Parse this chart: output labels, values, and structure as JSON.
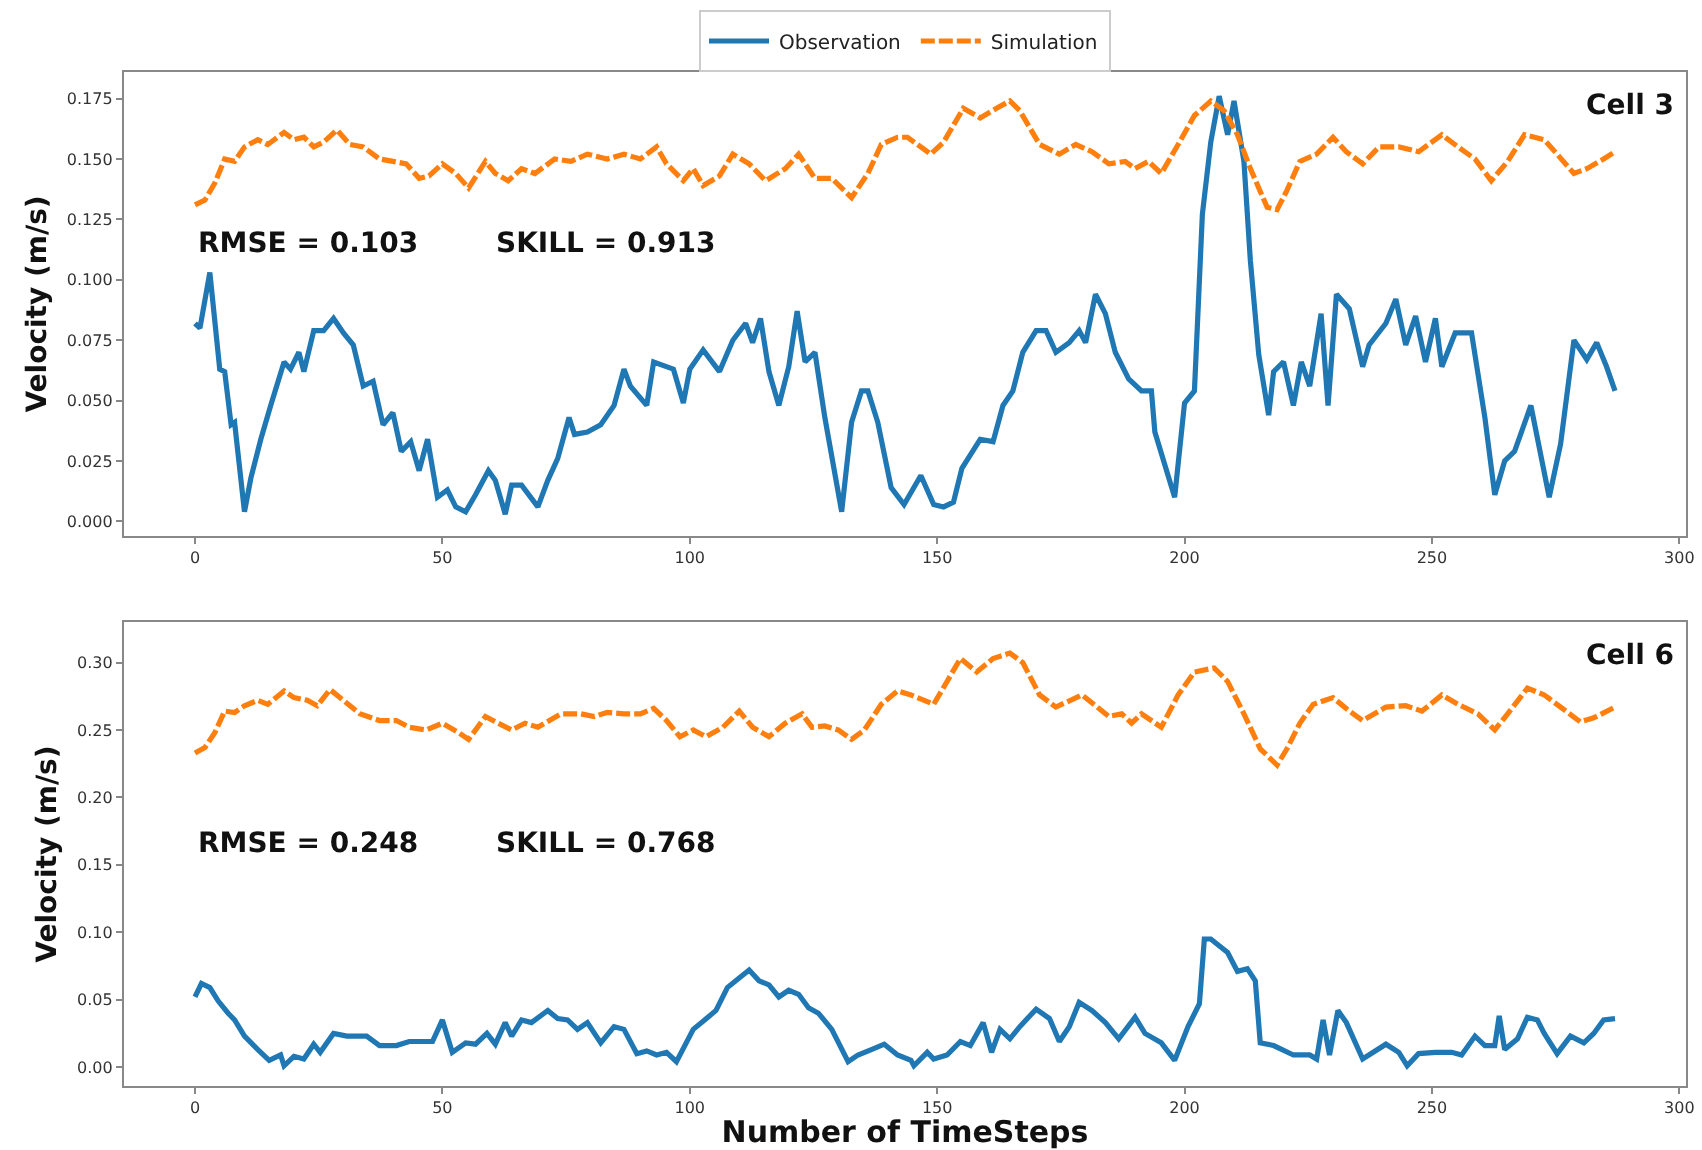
{
  "chart_data": [
    {
      "type": "line",
      "ylabel": "Velocity (m/s)",
      "annotations": [
        "Cell 3",
        "RMSE = 0.103",
        "SKILL = 0.913"
      ],
      "legend": "top",
      "xlim": [
        -14.35,
        301.35
      ],
      "xticks": [
        0,
        50,
        100,
        150,
        200,
        250,
        300
      ],
      "ylim": [
        -0.006,
        0.186
      ],
      "yticks": [
        {
          "value": 0,
          "label": "0.000"
        },
        0.025,
        {
          "value": 0.05,
          "label": "0.050"
        },
        0.075,
        {
          "value": 0.1,
          "label": "0.100"
        },
        0.125,
        {
          "value": 0.15,
          "label": "0.150"
        },
        0.175
      ],
      "series": [
        {
          "name": "Observation",
          "color": "#1f77b4",
          "line_style": "solid",
          "x": [
            0,
            1,
            3,
            5,
            6,
            7.3,
            8,
            10,
            11.3,
            13.3,
            15.3,
            18,
            19.3,
            21,
            22,
            24,
            26,
            28,
            30,
            32,
            34,
            36,
            38,
            40,
            41.7,
            43.6,
            45.3,
            47,
            49,
            51,
            52.7,
            54.7,
            56.7,
            59.3,
            60.7,
            62.7,
            64,
            66,
            69.3,
            71.3,
            73.3,
            75.6,
            76.7,
            79.3,
            82,
            84.7,
            86.7,
            88,
            91.3,
            92.7,
            96.7,
            98.7,
            100,
            102.7,
            106,
            108.7,
            111.3,
            112.7,
            114.3,
            116,
            118,
            120,
            121.7,
            123.3,
            125.3,
            127.3,
            130.7,
            132.7,
            134.7,
            136,
            138,
            140.7,
            143.3,
            146.7,
            149.3,
            151.3,
            153.3,
            155,
            158.7,
            161.3,
            163.3,
            165.3,
            167.3,
            170,
            172,
            174,
            176.7,
            178.7,
            180,
            182,
            184,
            186,
            188.7,
            191.3,
            193.3,
            194,
            198,
            200,
            202,
            203.6,
            205.3,
            207,
            208.7,
            210,
            212,
            213.3,
            215,
            217,
            218,
            220,
            222,
            223.6,
            225.3,
            227.6,
            229,
            230.7,
            233.3,
            236,
            237.3,
            240.7,
            242.7,
            244.7,
            246.7,
            248.7,
            250.7,
            252,
            254.7,
            258,
            260.7,
            262.7,
            264.7,
            266.7,
            270,
            273.7,
            276,
            278.7,
            281.3,
            283.3,
            285.3,
            287
          ],
          "values": [
            0.082,
            0.08,
            0.103,
            0.063,
            0.062,
            0.04,
            0.041,
            0.004,
            0.018,
            0.034,
            0.048,
            0.066,
            0.063,
            0.07,
            0.062,
            0.079,
            0.079,
            0.084,
            0.078,
            0.073,
            0.056,
            0.058,
            0.04,
            0.045,
            0.029,
            0.033,
            0.021,
            0.034,
            0.01,
            0.013,
            0.006,
            0.004,
            0.011,
            0.021,
            0.017,
            0.003,
            0.015,
            0.015,
            0.006,
            0.017,
            0.026,
            0.043,
            0.036,
            0.037,
            0.04,
            0.048,
            0.063,
            0.056,
            0.048,
            0.066,
            0.063,
            0.049,
            0.063,
            0.071,
            0.062,
            0.075,
            0.082,
            0.074,
            0.084,
            0.062,
            0.048,
            0.064,
            0.087,
            0.066,
            0.07,
            0.043,
            0.004,
            0.041,
            0.054,
            0.054,
            0.041,
            0.014,
            0.007,
            0.019,
            0.007,
            0.006,
            0.008,
            0.022,
            0.034,
            0.033,
            0.048,
            0.054,
            0.07,
            0.079,
            0.079,
            0.07,
            0.074,
            0.079,
            0.074,
            0.094,
            0.086,
            0.07,
            0.059,
            0.054,
            0.054,
            0.037,
            0.01,
            0.049,
            0.054,
            0.127,
            0.157,
            0.176,
            0.16,
            0.174,
            0.149,
            0.108,
            0.069,
            0.044,
            0.062,
            0.066,
            0.048,
            0.066,
            0.056,
            0.086,
            0.048,
            0.094,
            0.088,
            0.064,
            0.073,
            0.082,
            0.092,
            0.073,
            0.085,
            0.066,
            0.084,
            0.064,
            0.078,
            0.078,
            0.043,
            0.011,
            0.025,
            0.029,
            0.048,
            0.01,
            0.032,
            0.075,
            0.067,
            0.074,
            0.064,
            0.054
          ]
        },
        {
          "name": "Simulation",
          "color": "#ff7f0e",
          "line_style": "dashed",
          "x": [
            0,
            2,
            4,
            6,
            8,
            10,
            12.7,
            14.7,
            18,
            20,
            22,
            24,
            26,
            28.7,
            31.3,
            34,
            37.3,
            40,
            42.7,
            45.3,
            47.3,
            50,
            52.7,
            55.3,
            58.7,
            60.7,
            63.3,
            66,
            68.7,
            72.7,
            76,
            79.3,
            83.3,
            86.7,
            90,
            93.3,
            95.3,
            98.7,
            100.7,
            102.7,
            106,
            108.7,
            112,
            115.3,
            119.3,
            122,
            125.3,
            128.7,
            132.7,
            136,
            138.7,
            142,
            144,
            148.7,
            151.3,
            155.3,
            158.7,
            162,
            164.7,
            166.7,
            170.7,
            174.7,
            178,
            181.3,
            184.7,
            188,
            190,
            192.7,
            195.3,
            198.7,
            202,
            205.3,
            208,
            210.7,
            213.3,
            216.7,
            218.7,
            220.7,
            223.3,
            226.7,
            230,
            232.7,
            236,
            239.3,
            243.3,
            247.3,
            252,
            255.3,
            258.7,
            262,
            265.3,
            268.7,
            272.7,
            275.3,
            278.7,
            281.3,
            284.7,
            287
          ],
          "values": [
            0.131,
            0.133,
            0.14,
            0.15,
            0.149,
            0.155,
            0.158,
            0.156,
            0.161,
            0.158,
            0.159,
            0.155,
            0.157,
            0.162,
            0.156,
            0.155,
            0.15,
            0.149,
            0.148,
            0.142,
            0.143,
            0.148,
            0.144,
            0.138,
            0.149,
            0.144,
            0.141,
            0.146,
            0.144,
            0.15,
            0.149,
            0.152,
            0.15,
            0.152,
            0.15,
            0.155,
            0.148,
            0.141,
            0.146,
            0.139,
            0.143,
            0.152,
            0.148,
            0.141,
            0.146,
            0.152,
            0.142,
            0.142,
            0.134,
            0.144,
            0.156,
            0.159,
            0.159,
            0.152,
            0.157,
            0.171,
            0.167,
            0.171,
            0.174,
            0.17,
            0.156,
            0.152,
            0.156,
            0.153,
            0.148,
            0.149,
            0.146,
            0.149,
            0.144,
            0.156,
            0.168,
            0.174,
            0.17,
            0.16,
            0.146,
            0.13,
            0.129,
            0.137,
            0.149,
            0.152,
            0.159,
            0.153,
            0.148,
            0.155,
            0.155,
            0.153,
            0.16,
            0.155,
            0.15,
            0.141,
            0.149,
            0.16,
            0.158,
            0.152,
            0.144,
            0.146,
            0.15,
            0.153
          ]
        }
      ]
    },
    {
      "type": "line",
      "xlabel": "Number of TimeSteps",
      "ylabel": "Velocity (m/s)",
      "annotations": [
        "Cell 6",
        "RMSE = 0.248",
        "SKILL = 0.768"
      ],
      "xlim": [
        -14.35,
        301.35
      ],
      "xticks": [
        0,
        50,
        100,
        150,
        200,
        250,
        300
      ],
      "ylim": [
        -0.014,
        0.33
      ],
      "yticks": [
        {
          "value": 0,
          "label": "0.00"
        },
        0.05,
        {
          "value": 0.1,
          "label": "0.10"
        },
        0.15,
        {
          "value": 0.2,
          "label": "0.20"
        },
        0.25,
        {
          "value": 0.3,
          "label": "0.30"
        }
      ],
      "series": [
        {
          "name": "Observation",
          "color": "#1f77b4",
          "line_style": "solid",
          "x": [
            0,
            1.3,
            3,
            4.7,
            6.7,
            8,
            10,
            12.7,
            15,
            17.3,
            18,
            20,
            22,
            24,
            25.3,
            28,
            30.7,
            34.7,
            37.3,
            40.7,
            43.3,
            48,
            50,
            52,
            54.7,
            56.7,
            59,
            60.7,
            62.7,
            64,
            66,
            68,
            71.3,
            73.3,
            75.3,
            77.3,
            79.3,
            82,
            84.7,
            86.7,
            89.3,
            91.3,
            93.3,
            95.3,
            97.3,
            100.7,
            103,
            105.3,
            107.6,
            109.3,
            112,
            114,
            116,
            118,
            120,
            122,
            124,
            126,
            128.7,
            132,
            134,
            136.7,
            139.3,
            142,
            144.7,
            145.3,
            148,
            149.3,
            152,
            154.7,
            156.7,
            159.3,
            161,
            162.7,
            164.7,
            166.7,
            170,
            172.7,
            174.7,
            176.7,
            178.7,
            181.3,
            184,
            186.7,
            190,
            192,
            195.3,
            198,
            200.7,
            203,
            204,
            205.3,
            207,
            208.7,
            210.7,
            212.7,
            214.3,
            215.3,
            218,
            222,
            225.3,
            226.7,
            228,
            229.3,
            231,
            232.7,
            236,
            240.7,
            243.3,
            245,
            247.3,
            250.7,
            254,
            256,
            258.7,
            260.7,
            262.7,
            263.6,
            264.7,
            267.3,
            269.3,
            271.3,
            272.7,
            275.3,
            278,
            280.7,
            282.7,
            284.7,
            287
          ],
          "values": [
            0.052,
            0.062,
            0.059,
            0.049,
            0.04,
            0.035,
            0.023,
            0.013,
            0.005,
            0.009,
            0.001,
            0.008,
            0.006,
            0.017,
            0.011,
            0.025,
            0.023,
            0.023,
            0.016,
            0.016,
            0.019,
            0.019,
            0.035,
            0.011,
            0.018,
            0.017,
            0.025,
            0.017,
            0.033,
            0.023,
            0.035,
            0.033,
            0.042,
            0.036,
            0.035,
            0.028,
            0.033,
            0.018,
            0.03,
            0.028,
            0.01,
            0.012,
            0.009,
            0.011,
            0.004,
            0.028,
            0.035,
            0.042,
            0.059,
            0.064,
            0.072,
            0.064,
            0.061,
            0.052,
            0.057,
            0.054,
            0.044,
            0.04,
            0.028,
            0.004,
            0.009,
            0.013,
            0.017,
            0.009,
            0.005,
            0.001,
            0.011,
            0.006,
            0.009,
            0.019,
            0.016,
            0.033,
            0.011,
            0.028,
            0.021,
            0.03,
            0.043,
            0.036,
            0.019,
            0.03,
            0.048,
            0.042,
            0.033,
            0.021,
            0.037,
            0.025,
            0.018,
            0.005,
            0.03,
            0.047,
            0.095,
            0.095,
            0.09,
            0.085,
            0.071,
            0.073,
            0.064,
            0.018,
            0.016,
            0.009,
            0.009,
            0.006,
            0.035,
            0.009,
            0.042,
            0.033,
            0.006,
            0.017,
            0.011,
            0.001,
            0.01,
            0.011,
            0.011,
            0.009,
            0.023,
            0.016,
            0.016,
            0.038,
            0.013,
            0.021,
            0.037,
            0.035,
            0.025,
            0.01,
            0.023,
            0.018,
            0.025,
            0.035,
            0.036
          ]
        },
        {
          "name": "Simulation",
          "color": "#ff7f0e",
          "line_style": "dashed",
          "x": [
            0,
            2,
            4,
            6,
            8,
            10,
            12.7,
            14.7,
            18,
            20,
            22.7,
            24.7,
            27.3,
            30,
            33.3,
            37.3,
            40.7,
            43.3,
            46.7,
            50,
            53.3,
            55.3,
            58.7,
            61.3,
            64,
            66.7,
            69.3,
            74,
            78,
            80.7,
            83.3,
            86.7,
            90,
            92.7,
            95.3,
            98,
            100.7,
            103.3,
            106.7,
            110,
            112.7,
            116,
            119.3,
            122.7,
            124.7,
            127.3,
            130,
            132.7,
            135.3,
            138.7,
            142,
            144.7,
            149.3,
            152,
            154.7,
            158,
            161.3,
            164.7,
            167.3,
            170.7,
            174,
            179.3,
            184.7,
            187.3,
            189.3,
            191.3,
            195.3,
            198.7,
            202,
            206,
            208.7,
            212,
            215.3,
            218.7,
            220.7,
            223.3,
            226,
            230,
            233.3,
            236,
            240.7,
            244.7,
            248,
            252,
            255.3,
            259.3,
            262.7,
            265.3,
            269.3,
            272.7,
            276,
            280,
            282.7,
            287
          ],
          "values": [
            0.233,
            0.237,
            0.248,
            0.264,
            0.263,
            0.268,
            0.272,
            0.269,
            0.279,
            0.274,
            0.272,
            0.268,
            0.28,
            0.272,
            0.262,
            0.257,
            0.257,
            0.252,
            0.25,
            0.255,
            0.248,
            0.243,
            0.26,
            0.255,
            0.25,
            0.255,
            0.252,
            0.262,
            0.262,
            0.26,
            0.263,
            0.262,
            0.262,
            0.266,
            0.257,
            0.245,
            0.25,
            0.245,
            0.252,
            0.264,
            0.252,
            0.245,
            0.255,
            0.262,
            0.252,
            0.253,
            0.25,
            0.243,
            0.25,
            0.269,
            0.279,
            0.276,
            0.269,
            0.286,
            0.303,
            0.293,
            0.303,
            0.307,
            0.3,
            0.276,
            0.267,
            0.276,
            0.26,
            0.262,
            0.255,
            0.262,
            0.252,
            0.276,
            0.293,
            0.296,
            0.286,
            0.262,
            0.236,
            0.224,
            0.236,
            0.255,
            0.269,
            0.274,
            0.264,
            0.257,
            0.267,
            0.268,
            0.264,
            0.276,
            0.269,
            0.262,
            0.25,
            0.262,
            0.281,
            0.276,
            0.267,
            0.256,
            0.259,
            0.267
          ]
        }
      ]
    }
  ]
}
